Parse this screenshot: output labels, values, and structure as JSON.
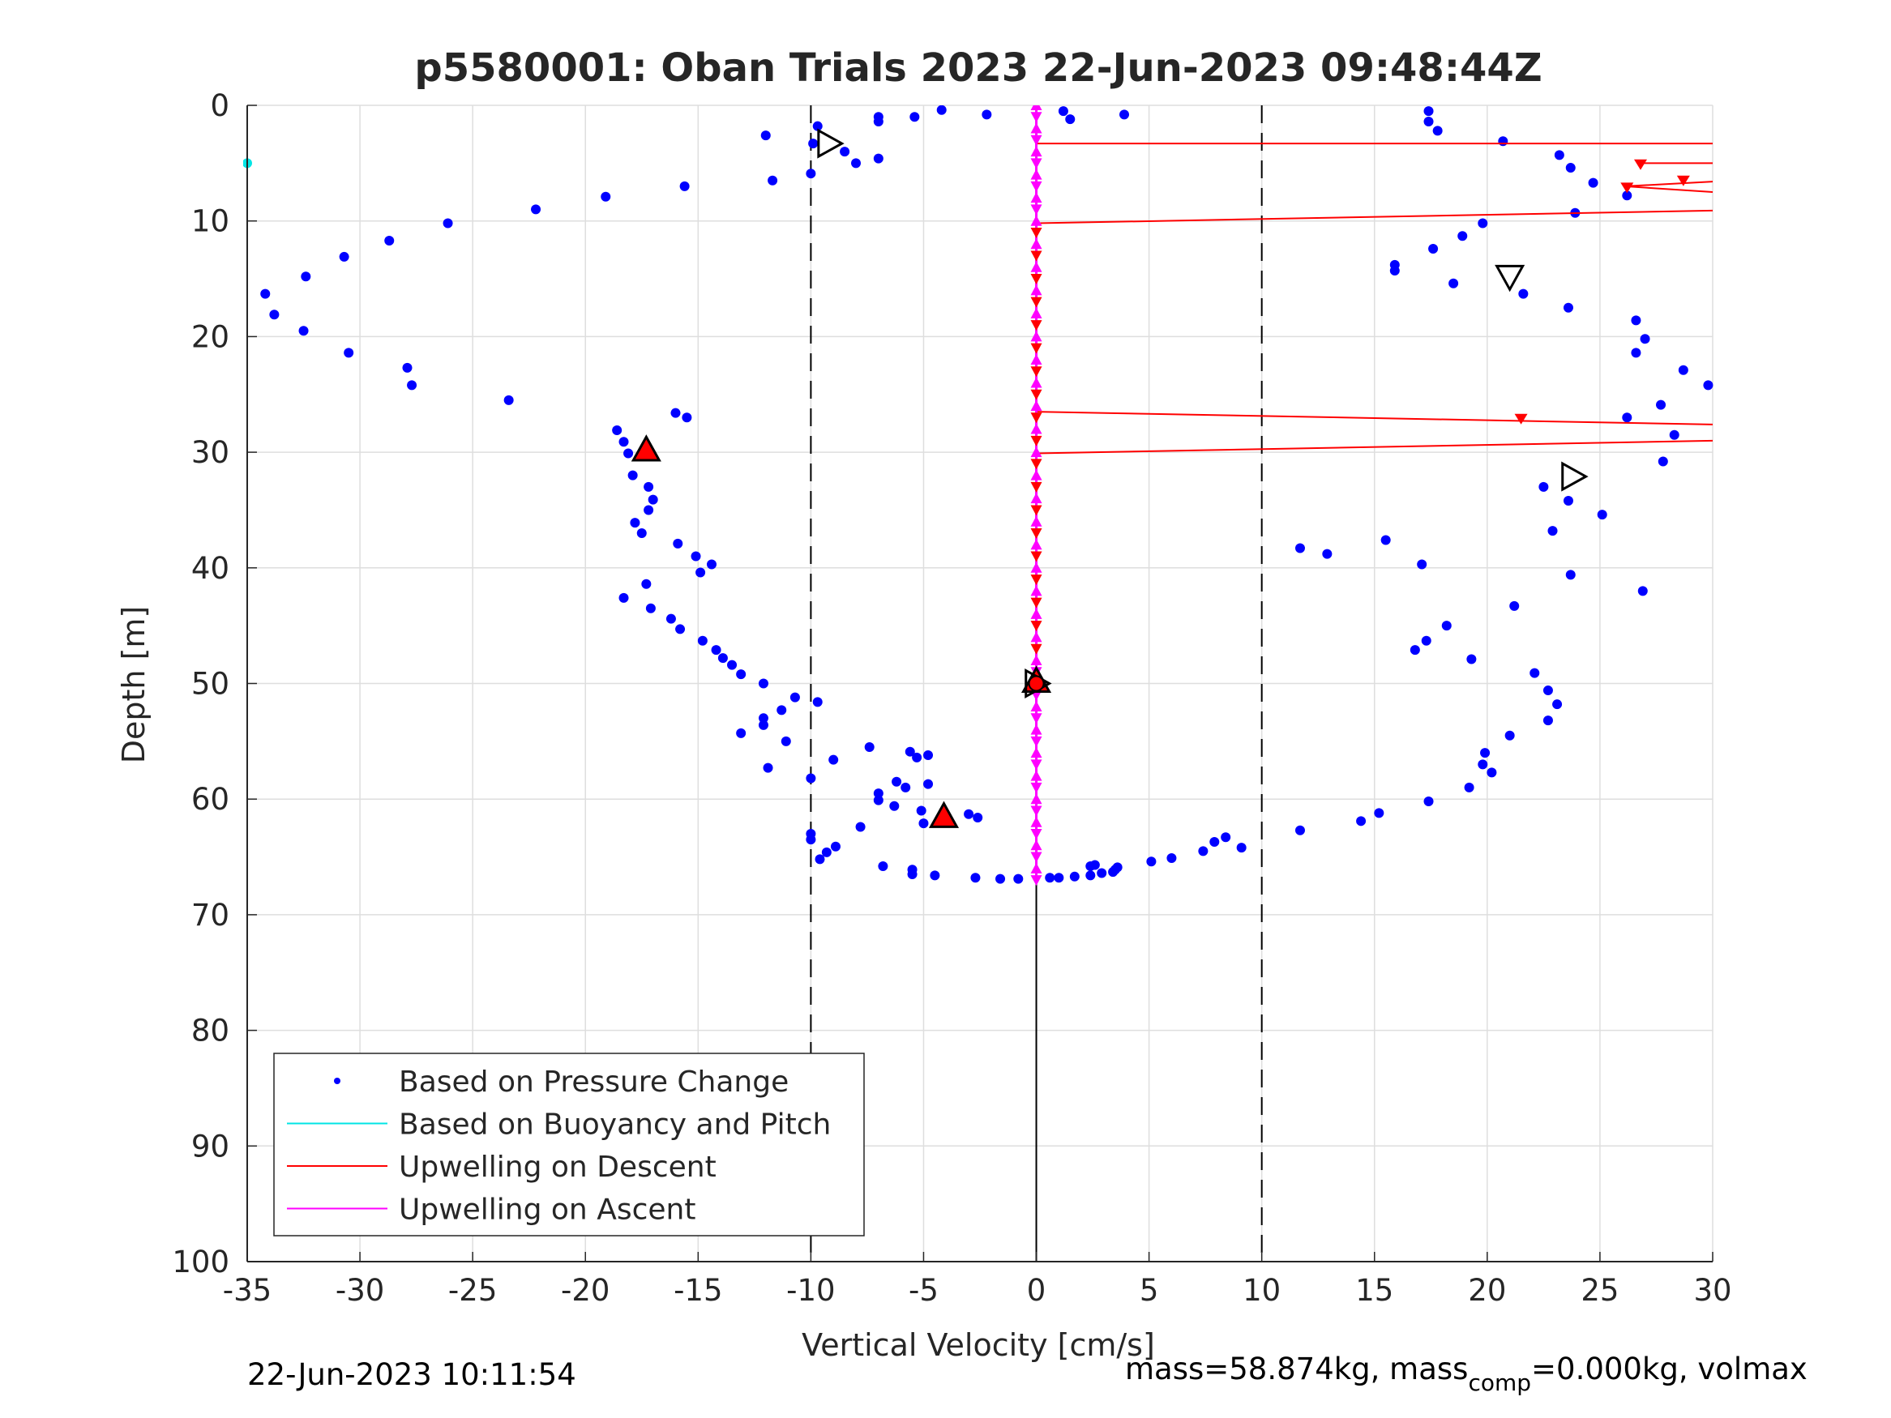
{
  "chart_data": {
    "type": "scatter",
    "title": "p5580001: Oban Trials 2023 22-Jun-2023 09:48:44Z",
    "xlabel": "Vertical Velocity [cm/s]",
    "ylabel": "Depth [m]",
    "xlim": [
      -35,
      30
    ],
    "ylim": [
      0,
      100
    ],
    "y_reversed": true,
    "grid": true,
    "xticks": [
      "-35",
      "-30",
      "-25",
      "-20",
      "-15",
      "-10",
      "-5",
      "0",
      "5",
      "10",
      "15",
      "20",
      "25",
      "30"
    ],
    "yticks": [
      "0",
      "10",
      "20",
      "30",
      "40",
      "50",
      "60",
      "70",
      "80",
      "90",
      "100"
    ],
    "reference_lines": [
      {
        "x": -10,
        "style": "dashed",
        "color": "#000000"
      },
      {
        "x": 10,
        "style": "dashed",
        "color": "#000000"
      },
      {
        "x": 0,
        "style": "solid",
        "color": "#000000",
        "y_range": [
          0,
          100
        ]
      }
    ],
    "legend": {
      "location": "bottom-left",
      "entries": [
        {
          "label": "Based on Pressure Change",
          "color": "#0000ff",
          "style": "dot"
        },
        {
          "label": "Based on Buoyancy and Pitch",
          "color": "#00e5e5",
          "style": "line"
        },
        {
          "label": "Upwelling on Descent",
          "color": "#ff0000",
          "style": "line"
        },
        {
          "label": "Upwelling on Ascent",
          "color": "#ff00ff",
          "style": "line"
        }
      ]
    },
    "series": [
      {
        "name": "Based on Pressure Change",
        "color": "#0000ff",
        "marker": "dot",
        "points": [
          [
            -12,
            2.6
          ],
          [
            -9.7,
            1.8
          ],
          [
            -9.9,
            3.3
          ],
          [
            -8.5,
            4.0
          ],
          [
            -8.0,
            5.0
          ],
          [
            -7.0,
            4.6
          ],
          [
            -7.0,
            1.0
          ],
          [
            -7.0,
            1.4
          ],
          [
            -5.4,
            1.0
          ],
          [
            -4.2,
            0.4
          ],
          [
            -2.2,
            0.8
          ],
          [
            1.2,
            0.5
          ],
          [
            1.5,
            1.2
          ],
          [
            3.9,
            0.8
          ],
          [
            -11.7,
            6.5
          ],
          [
            -10.0,
            5.9
          ],
          [
            -15.6,
            7.0
          ],
          [
            -19.1,
            7.9
          ],
          [
            -22.2,
            9.0
          ],
          [
            -26.1,
            10.2
          ],
          [
            -28.7,
            11.7
          ],
          [
            -30.7,
            13.1
          ],
          [
            -32.4,
            14.8
          ],
          [
            -34.2,
            16.3
          ],
          [
            -33.8,
            18.1
          ],
          [
            -32.5,
            19.5
          ],
          [
            -30.5,
            21.4
          ],
          [
            -27.9,
            22.7
          ],
          [
            -27.7,
            24.2
          ],
          [
            -23.4,
            25.5
          ],
          [
            -16.0,
            26.6
          ],
          [
            -15.5,
            27.0
          ],
          [
            -18.6,
            28.1
          ],
          [
            -18.3,
            29.1
          ],
          [
            -18.1,
            30.1
          ],
          [
            -17.9,
            32.0
          ],
          [
            -17.2,
            33.0
          ],
          [
            -17.0,
            34.1
          ],
          [
            -17.2,
            35.0
          ],
          [
            -17.8,
            36.1
          ],
          [
            -17.5,
            37.0
          ],
          [
            -15.9,
            37.9
          ],
          [
            -15.1,
            39.0
          ],
          [
            -14.4,
            39.7
          ],
          [
            -14.9,
            40.4
          ],
          [
            -17.3,
            41.4
          ],
          [
            -18.3,
            42.6
          ],
          [
            -17.1,
            43.5
          ],
          [
            -16.2,
            44.4
          ],
          [
            -15.8,
            45.3
          ],
          [
            -14.8,
            46.3
          ],
          [
            -14.2,
            47.1
          ],
          [
            -13.9,
            47.8
          ],
          [
            -13.5,
            48.4
          ],
          [
            -13.1,
            49.2
          ],
          [
            -12.1,
            50.0
          ],
          [
            -10.7,
            51.2
          ],
          [
            -9.7,
            51.6
          ],
          [
            -11.3,
            52.3
          ],
          [
            -12.1,
            53.0
          ],
          [
            -12.1,
            53.6
          ],
          [
            -13.1,
            54.3
          ],
          [
            -11.1,
            55.0
          ],
          [
            -9.0,
            56.6
          ],
          [
            -11.9,
            57.3
          ],
          [
            -10.0,
            58.2
          ],
          [
            -7.4,
            55.5
          ],
          [
            -5.6,
            55.9
          ],
          [
            -5.3,
            56.4
          ],
          [
            -4.8,
            56.2
          ],
          [
            -6.2,
            58.5
          ],
          [
            -4.8,
            58.7
          ],
          [
            -5.8,
            59.0
          ],
          [
            -7.0,
            59.5
          ],
          [
            -7.0,
            60.1
          ],
          [
            -6.3,
            60.6
          ],
          [
            -5.1,
            61.0
          ],
          [
            -5.0,
            62.1
          ],
          [
            -3.0,
            61.3
          ],
          [
            -2.6,
            61.6
          ],
          [
            -7.8,
            62.4
          ],
          [
            -10.0,
            63.0
          ],
          [
            -10.0,
            63.5
          ],
          [
            -9.6,
            65.2
          ],
          [
            -9.3,
            64.6
          ],
          [
            -8.9,
            64.1
          ],
          [
            -6.8,
            65.8
          ],
          [
            -5.5,
            66.1
          ],
          [
            -5.5,
            66.5
          ],
          [
            -4.5,
            66.6
          ],
          [
            -2.7,
            66.8
          ],
          [
            -1.6,
            66.9
          ],
          [
            -0.8,
            66.9
          ],
          [
            0.6,
            66.8
          ],
          [
            1.0,
            66.8
          ],
          [
            1.7,
            66.7
          ],
          [
            2.4,
            66.6
          ],
          [
            2.4,
            65.8
          ],
          [
            2.6,
            65.7
          ],
          [
            2.9,
            66.4
          ],
          [
            3.4,
            66.3
          ],
          [
            3.5,
            66.1
          ],
          [
            3.6,
            65.9
          ],
          [
            5.1,
            65.4
          ],
          [
            6.0,
            65.1
          ],
          [
            7.4,
            64.5
          ],
          [
            7.9,
            63.7
          ],
          [
            8.4,
            63.3
          ],
          [
            9.1,
            64.2
          ],
          [
            11.7,
            62.7
          ],
          [
            14.4,
            61.9
          ],
          [
            15.2,
            61.2
          ],
          [
            17.4,
            60.2
          ],
          [
            19.2,
            59.0
          ],
          [
            19.8,
            57.0
          ],
          [
            19.9,
            56.0
          ],
          [
            20.2,
            57.7
          ],
          [
            21.0,
            54.5
          ],
          [
            22.1,
            49.1
          ],
          [
            22.7,
            50.6
          ],
          [
            22.7,
            53.2
          ],
          [
            23.1,
            51.8
          ],
          [
            16.8,
            47.1
          ],
          [
            17.3,
            46.3
          ],
          [
            18.2,
            45.0
          ],
          [
            19.3,
            47.9
          ],
          [
            21.2,
            43.3
          ],
          [
            23.7,
            40.6
          ],
          [
            26.9,
            42.0
          ],
          [
            11.7,
            38.3
          ],
          [
            12.9,
            38.8
          ],
          [
            15.5,
            37.6
          ],
          [
            17.1,
            39.7
          ],
          [
            22.9,
            36.8
          ],
          [
            25.1,
            35.4
          ],
          [
            22.5,
            33.0
          ],
          [
            23.6,
            34.2
          ],
          [
            27.8,
            30.8
          ],
          [
            28.3,
            28.5
          ],
          [
            26.2,
            27.0
          ],
          [
            27.7,
            25.9
          ],
          [
            28.7,
            22.9
          ],
          [
            29.8,
            24.2
          ],
          [
            26.6,
            21.4
          ],
          [
            27.0,
            20.2
          ],
          [
            26.6,
            18.6
          ],
          [
            23.6,
            17.5
          ],
          [
            21.6,
            16.3
          ],
          [
            18.5,
            15.4
          ],
          [
            15.9,
            14.3
          ],
          [
            15.9,
            13.8
          ],
          [
            17.6,
            12.4
          ],
          [
            18.9,
            11.3
          ],
          [
            19.8,
            10.2
          ],
          [
            23.9,
            9.3
          ],
          [
            26.2,
            7.8
          ],
          [
            24.7,
            6.7
          ],
          [
            23.7,
            5.4
          ],
          [
            23.2,
            4.3
          ],
          [
            20.7,
            3.1
          ],
          [
            17.8,
            2.2
          ],
          [
            17.4,
            1.4
          ],
          [
            17.4,
            0.5
          ]
        ]
      },
      {
        "name": "Based on Buoyancy and Pitch",
        "color": "#00e5e5",
        "marker": "dot",
        "points": [
          [
            -35,
            5
          ]
        ]
      },
      {
        "name": "Upwelling on Descent",
        "color": "#ff0000",
        "marker": "line",
        "segments": [
          [
            [
              0,
              3.3
            ],
            [
              30,
              3.3
            ]
          ],
          [
            [
              0,
              10.2
            ],
            [
              30,
              9.1
            ]
          ],
          [
            [
              0,
              26.5
            ],
            [
              30,
              27.6
            ]
          ],
          [
            [
              0,
              30.1
            ],
            [
              30,
              29.0
            ]
          ],
          [
            [
              26.8,
              5.0
            ],
            [
              30,
              5.0
            ]
          ],
          [
            [
              26.1,
              7.0
            ],
            [
              30,
              6.6
            ]
          ],
          [
            [
              26.1,
              7.0
            ],
            [
              30,
              7.5
            ]
          ]
        ],
        "markers": [
          [
            26.8,
            5.1
          ],
          [
            28.7,
            6.5
          ],
          [
            26.2,
            7.1
          ],
          [
            21.5,
            27.1
          ]
        ]
      },
      {
        "name": "Upwelling on Ascent",
        "color": "#ff00ff",
        "marker": "line",
        "segments": [
          [
            [
              0,
              0
            ],
            [
              0,
              67
            ]
          ]
        ]
      }
    ],
    "special_markers": [
      {
        "type": "triangle-right",
        "x": -9.2,
        "y": 3.3,
        "fill": "none"
      },
      {
        "type": "triangle-down",
        "x": 21.0,
        "y": 14.8,
        "fill": "none"
      },
      {
        "type": "triangle-up",
        "x": -17.3,
        "y": 29.8,
        "fill": "#ff0000"
      },
      {
        "type": "triangle-right",
        "x": 23.8,
        "y": 32.1,
        "fill": "none"
      },
      {
        "type": "triangle-up",
        "x": 0,
        "y": 49.8,
        "fill": "#ff0000"
      },
      {
        "type": "triangle-right",
        "x": 0,
        "y": 50.0,
        "fill": "none"
      },
      {
        "type": "circle",
        "x": 0,
        "y": 50.0,
        "fill": "#ff0000"
      },
      {
        "type": "triangle-up",
        "x": -4.1,
        "y": 61.5,
        "fill": "#ff0000"
      }
    ]
  },
  "footer": {
    "timestamp": "22-Jun-2023 10:11:54",
    "info_prefix": "mass=58.874kg, mass",
    "info_sub": "comp",
    "info_suffix": "=0.000kg, volmax"
  }
}
